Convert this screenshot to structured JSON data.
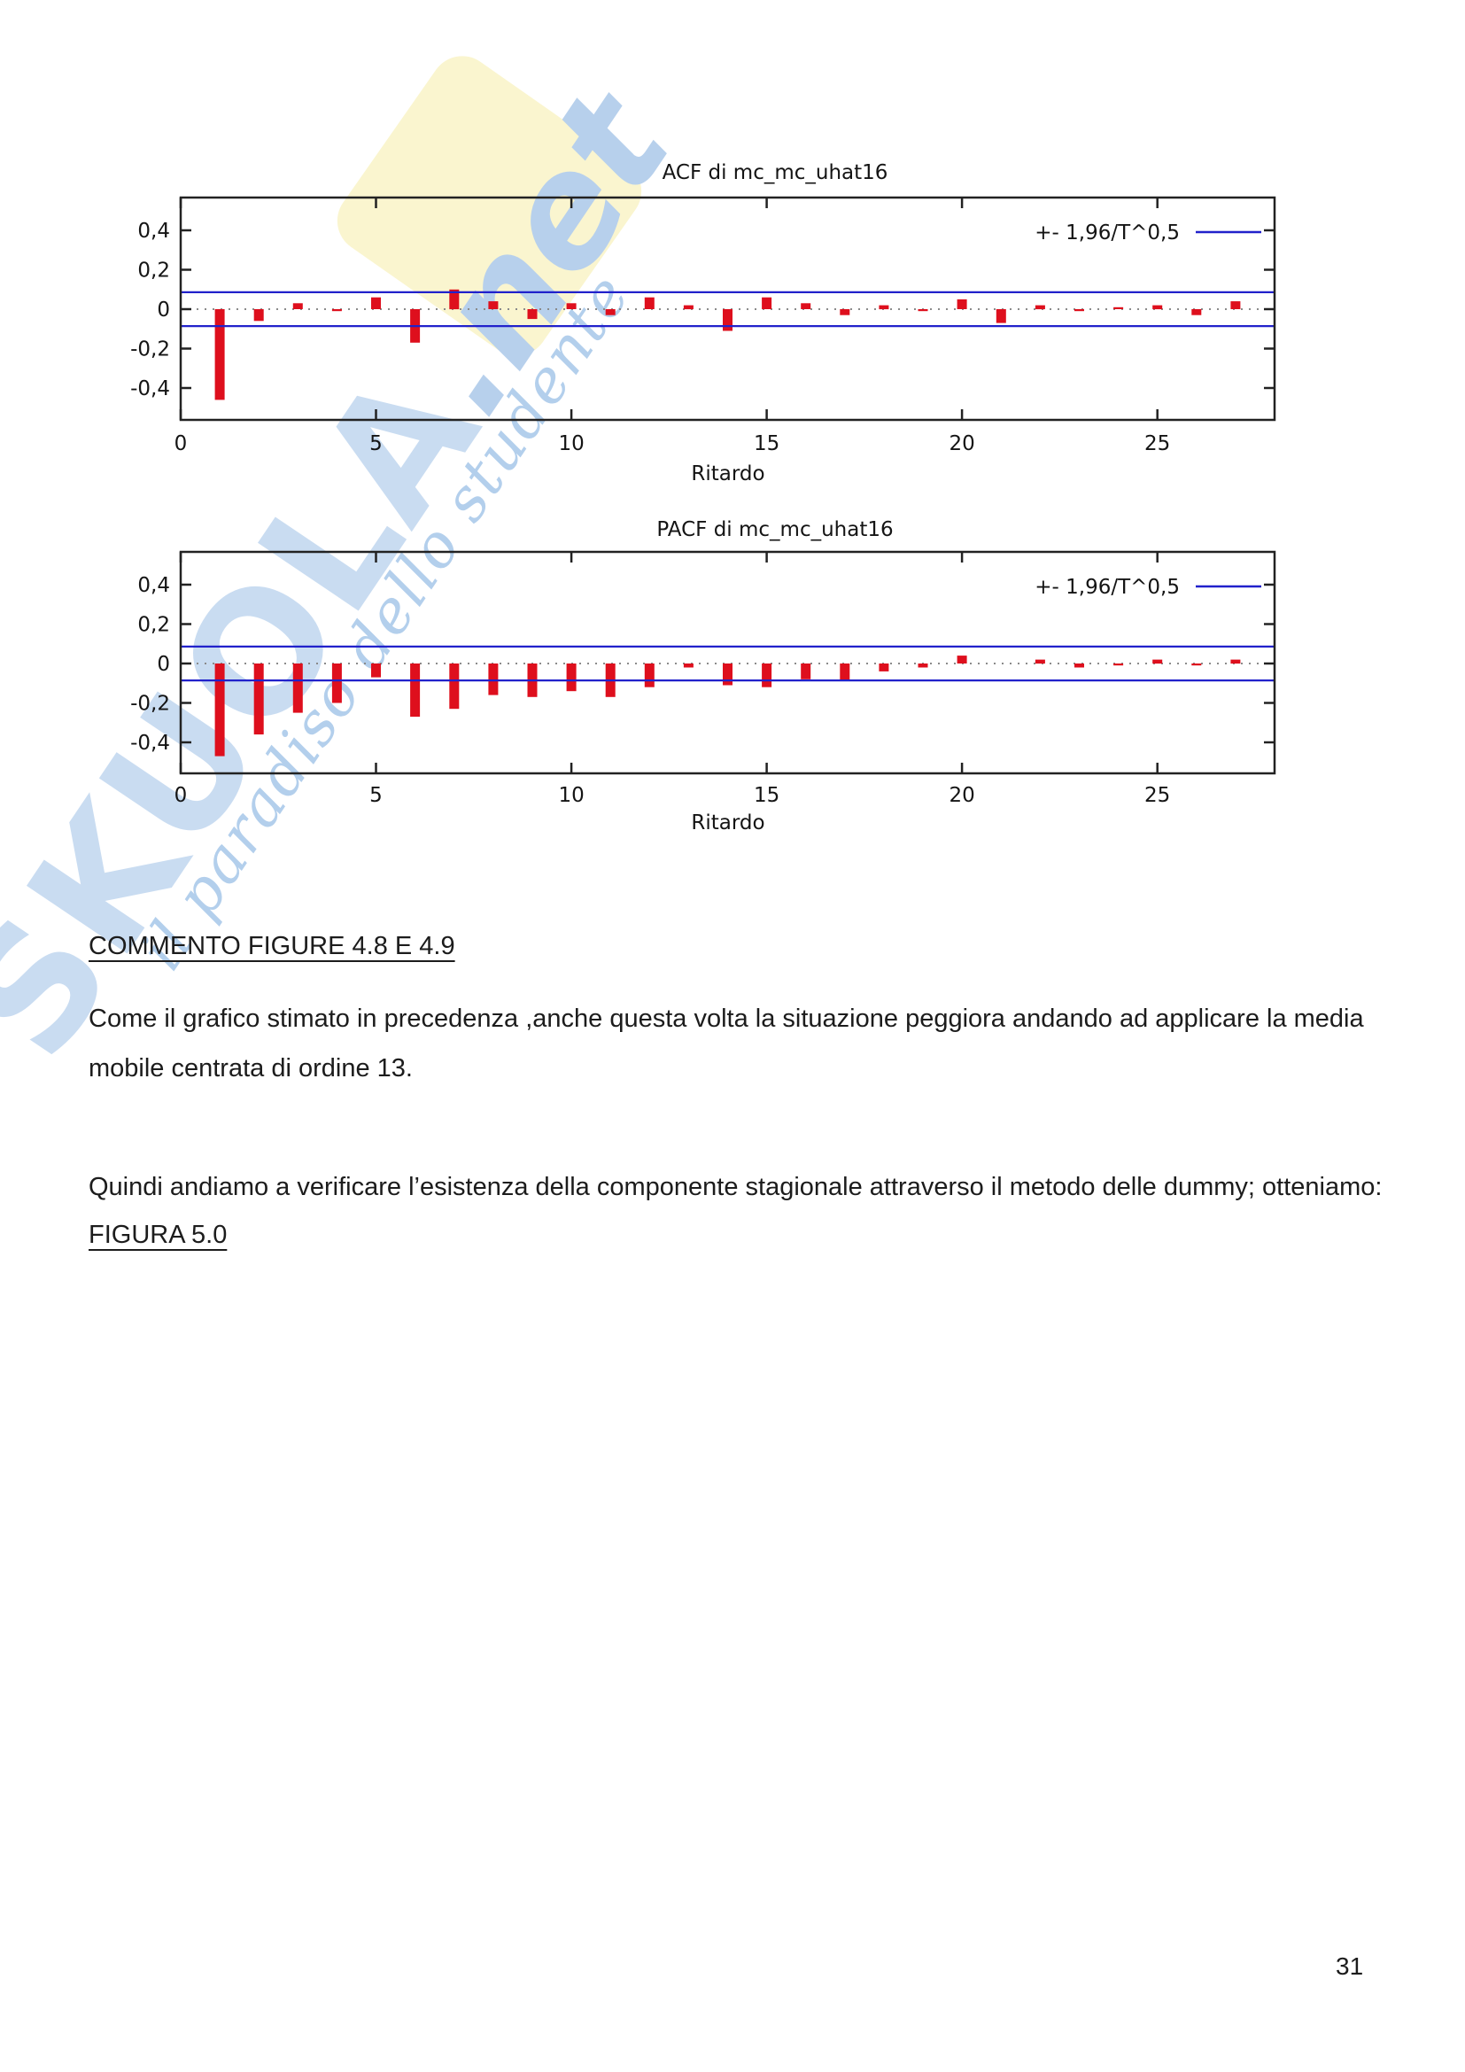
{
  "page": {
    "number": "31"
  },
  "watermark": {
    "brand": "SKUOLA",
    "brand_suffix": ".net",
    "tagline": "il paradiso dello studente",
    "colors": {
      "letters": "#c9dcf1",
      "net": "#b7d0ec",
      "script": "#b3cfec",
      "diamond": "#faf5cf"
    }
  },
  "document": {
    "heading": "COMMENTO FIGURE 4.8 E 4.9",
    "paragraph_1": "Come il grafico stimato in precedenza ,anche questa volta la situazione peggiora andando ad applicare la media mobile centrata di ordine 13.",
    "paragraph_2": "Quindi andiamo a verificare l’esistenza della componente stagionale attraverso il metodo delle dummy; otteniamo:",
    "figure_label": "FIGURA 5.0"
  },
  "chart_data": [
    {
      "id": "acf",
      "type": "bar",
      "title": "ACF di mc_mc_uhat16",
      "xlabel": "Ritardo",
      "legend": "+- 1,96/T^0,5",
      "legend_position": "top-right",
      "grid": false,
      "x": [
        1,
        2,
        3,
        4,
        5,
        6,
        7,
        8,
        9,
        10,
        11,
        12,
        13,
        14,
        15,
        16,
        17,
        18,
        19,
        20,
        21,
        22,
        23,
        24,
        25,
        26,
        27
      ],
      "values": [
        -0.46,
        -0.06,
        0.03,
        -0.01,
        0.06,
        -0.17,
        0.1,
        0.04,
        -0.05,
        0.03,
        -0.03,
        0.06,
        0.02,
        -0.11,
        0.06,
        0.03,
        -0.03,
        0.02,
        -0.01,
        0.05,
        -0.07,
        0.02,
        -0.01,
        0.01,
        0.02,
        -0.03,
        0.04
      ],
      "confidence_band": 0.086,
      "xlim": [
        0,
        28
      ],
      "ylim": [
        -0.56,
        0.57
      ],
      "xticks": [
        0,
        5,
        10,
        15,
        20,
        25
      ],
      "yticks": [
        0.4,
        0.2,
        0,
        -0.2,
        -0.4
      ],
      "ytick_labels": [
        "0,4",
        "0,2",
        "0",
        "-0,2",
        "-0,4"
      ],
      "bar_color": "#de0f1d",
      "band_color": "#2121cb"
    },
    {
      "id": "pacf",
      "type": "bar",
      "title": "PACF di mc_mc_uhat16",
      "xlabel": "Ritardo",
      "legend": "+- 1,96/T^0,5",
      "legend_position": "top-right",
      "grid": false,
      "x": [
        1,
        2,
        3,
        4,
        5,
        6,
        7,
        8,
        9,
        10,
        11,
        12,
        13,
        14,
        15,
        16,
        17,
        18,
        19,
        20,
        21,
        22,
        23,
        24,
        25,
        26,
        27
      ],
      "values": [
        -0.47,
        -0.36,
        -0.25,
        -0.2,
        -0.07,
        -0.27,
        -0.23,
        -0.16,
        -0.17,
        -0.14,
        -0.17,
        -0.12,
        -0.02,
        -0.11,
        -0.12,
        -0.08,
        -0.09,
        -0.04,
        -0.02,
        0.04,
        0.0,
        0.02,
        -0.02,
        -0.01,
        0.02,
        -0.01,
        0.02
      ],
      "confidence_band": 0.086,
      "xlim": [
        0,
        28
      ],
      "ylim": [
        -0.56,
        0.57
      ],
      "xticks": [
        0,
        5,
        10,
        15,
        20,
        25
      ],
      "yticks": [
        0.4,
        0.2,
        0,
        -0.2,
        -0.4
      ],
      "ytick_labels": [
        "0,4",
        "0,2",
        "0",
        "-0,2",
        "-0,4"
      ],
      "bar_color": "#de0f1d",
      "band_color": "#2121cb"
    }
  ]
}
